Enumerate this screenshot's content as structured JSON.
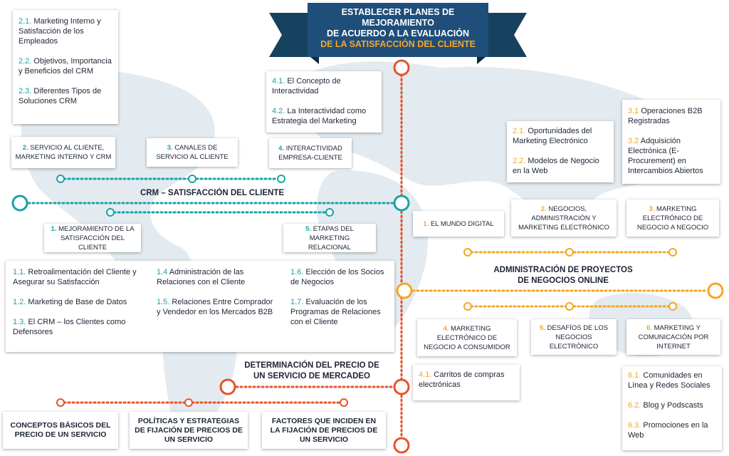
{
  "colors": {
    "teal": "#18a3a6",
    "orange_red": "#e5532b",
    "amber": "#f5a623",
    "navy": "#1f4e7a",
    "text": "#1d2433"
  },
  "banner": {
    "line1": "ESTABLECER PLANES DE MEJORAMIENTO",
    "line2": "DE ACUERDO A LA EVALUACIÓN",
    "line3": "DE LA SATISFACCIÓN DEL CLIENTE"
  },
  "crm": {
    "title": "CRM – SATISFACCIÓN DEL CLIENTE",
    "box_sub2": [
      {
        "num": "2.1.",
        "text": "Marketing Interno y Satisfacción de los Empleados"
      },
      {
        "num": "2.2.",
        "text": "Objetivos, Importancia y Beneficios del CRM"
      },
      {
        "num": "2.3.",
        "text": "Diferentes Tipos de Soluciones CRM"
      }
    ],
    "box_sub4": [
      {
        "num": "4.1.",
        "text": "El Concepto de Interactividad"
      },
      {
        "num": "4.2.",
        "text": "La Interactividad como Estrategia del Marketing"
      }
    ],
    "label2": {
      "num": "2.",
      "text": "Servicio al cliente, marketing interno y CRM"
    },
    "label3": {
      "num": "3.",
      "text": "Canales de servicio al cliente"
    },
    "label4": {
      "num": "4.",
      "text": "Interactividad empresa-cliente"
    },
    "label1": {
      "num": "1.",
      "text": "Mejoramiento de la satisfacción del cliente"
    },
    "label5": {
      "num": "5.",
      "text": "Etapas del marketing relacional"
    },
    "bottom_col1": [
      {
        "num": "1.1.",
        "text": "Retroalimentación del Cliente y Asegurar su Satisfacción"
      },
      {
        "num": "1.2.",
        "text": "Marketing de Base de Datos"
      },
      {
        "num": "1.3.",
        "text": "El CRM – los Clientes como Defensores"
      }
    ],
    "bottom_col2": [
      {
        "num": "1.4",
        "text": "Administración de las Relaciones con el Cliente"
      },
      {
        "num": "1.5.",
        "text": "Relaciones Entre Comprador y Vendedor en los Mercados B2B"
      }
    ],
    "bottom_col3": [
      {
        "num": "1.6.",
        "text": "Elección de los Socios de Negocios"
      },
      {
        "num": "1.7.",
        "text": "Evaluación de los Programas de Relaciones con el Cliente"
      }
    ]
  },
  "admin": {
    "title_line1": "ADMINISTRACIÓN DE PROYECTOS",
    "title_line2": "DE NEGOCIOS ONLINE",
    "box_sub2": [
      {
        "num": "2.1.",
        "text": "Oportunidades del Marketing Electrónico"
      },
      {
        "num": "2.2.",
        "text": "Modelos de Negocio en la Web"
      }
    ],
    "box_sub3": [
      {
        "num": "3.1",
        "text": "Operaciones B2B Registradas"
      },
      {
        "num": "3.2",
        "text": "Adquisición Electrónica (E-Procurement) en Intercambios Abiertos"
      }
    ],
    "label1": {
      "num": "1.",
      "text": "El mundo digital"
    },
    "label2": {
      "num": "2.",
      "text": "Negocios, administración y marketing electrónico"
    },
    "label3": {
      "num": "3.",
      "text": "Marketing electrónico de negocio a negocio"
    },
    "label4": {
      "num": "4.",
      "text": "Marketing electrónico de negocio a consumidor"
    },
    "label5": {
      "num": "5.",
      "text": "Desafíos de los negocios electrónico"
    },
    "label6": {
      "num": "6.",
      "text": "Marketing y comunicación por internet"
    },
    "box_sub4": [
      {
        "num": "4.1.",
        "text": "Carritos de compras electrónicas"
      }
    ],
    "box_sub6": [
      {
        "num": "6.1.",
        "text": "Comunidades en Línea y Redes Sociales"
      },
      {
        "num": "6.2.",
        "text": "Blog y Podscasts"
      },
      {
        "num": "6.3.",
        "text": "Promociones en la Web"
      }
    ]
  },
  "precio": {
    "title_line1": "DETERMINACIÓN DEL PRECIO DE",
    "title_line2": "UN SERVICIO DE MERCADEO",
    "box1": "CONCEPTOS BÁSICOS DEL PRECIO DE UN SERVICIO",
    "box2": "POLÍTICAS Y ESTRATEGIAS DE FIJACIÓN DE PRECIOS DE UN SERVICIO",
    "box3": "FACTORES QUE INCIDEN EN LA FIJACIÓN DE PRECIOS DE UN SERVICIO"
  }
}
